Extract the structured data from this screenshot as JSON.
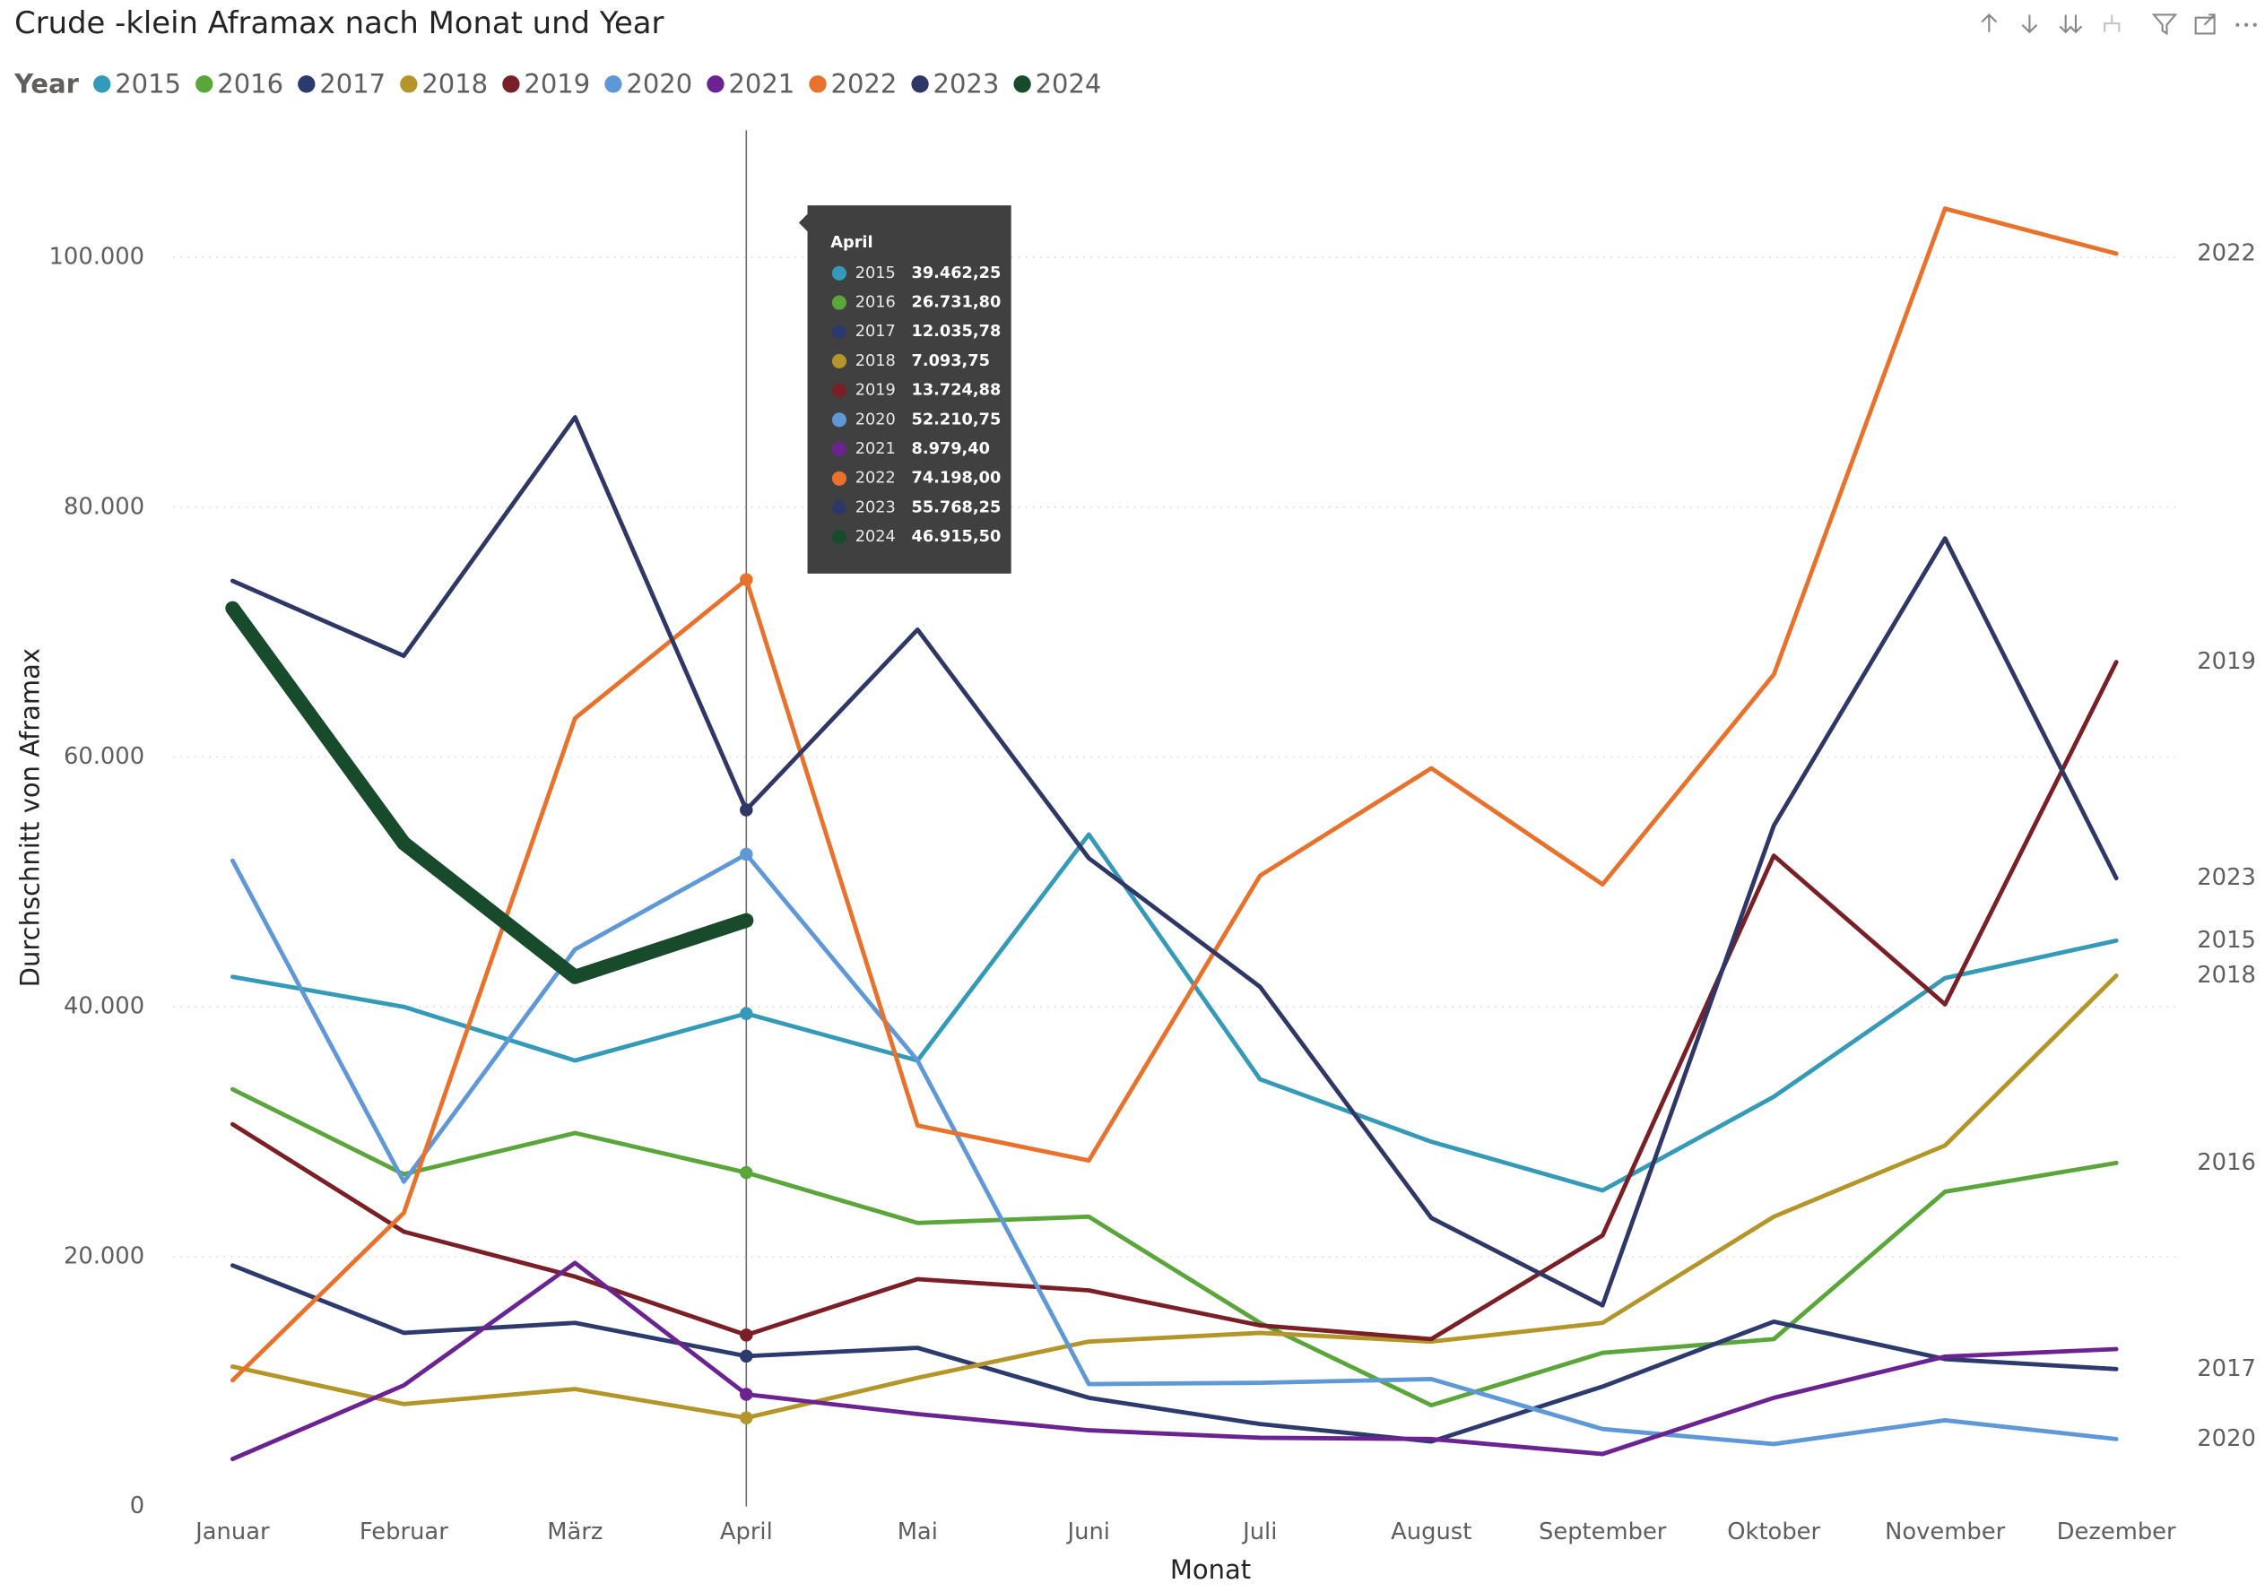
{
  "chart_data": {
    "type": "line",
    "title": "Crude -klein Aframax nach Monat und Year",
    "legend_title": "Year",
    "x_label": "Monat",
    "y_label": "Durchschnitt von Aframax",
    "categories": [
      "Januar",
      "Februar",
      "März",
      "April",
      "Mai",
      "Juni",
      "Juli",
      "August",
      "September",
      "Oktober",
      "November",
      "Dezember"
    ],
    "ylim": [
      0,
      110000
    ],
    "yticks": [
      0,
      {
        "value": 20000,
        "label": "20.000"
      },
      {
        "value": 40000,
        "label": "40.000"
      },
      {
        "value": 60000,
        "label": "60.000"
      },
      {
        "value": 80000,
        "label": "80.000"
      },
      {
        "value": 100000,
        "label": "100.000"
      }
    ],
    "grid": true,
    "series": [
      {
        "name": "2015",
        "color": "#3599b8",
        "values": [
          42400,
          40000,
          35700,
          39462.25,
          35700,
          53800,
          34200,
          29200,
          25300,
          32800,
          42300,
          45300
        ]
      },
      {
        "name": "2016",
        "color": "#5aa63a",
        "values": [
          33400,
          26600,
          29900,
          26731.8,
          22700,
          23200,
          14700,
          8100,
          12300,
          13400,
          25200,
          27500
        ]
      },
      {
        "name": "2017",
        "color": "#2d3a6d",
        "values": [
          19300,
          13900,
          14700,
          12035.78,
          12700,
          8700,
          6600,
          5200,
          9600,
          14800,
          11800,
          11000
        ]
      },
      {
        "name": "2018",
        "color": "#b3952a",
        "values": [
          11200,
          8200,
          9400,
          7093.75,
          10300,
          13200,
          13900,
          13200,
          14700,
          23200,
          28900,
          42500
        ]
      },
      {
        "name": "2019",
        "color": "#7a1f26",
        "values": [
          30600,
          22000,
          18400,
          13724.88,
          18200,
          17300,
          14500,
          13400,
          21700,
          52100,
          40200,
          67600
        ]
      },
      {
        "name": "2020",
        "color": "#5f98d6",
        "values": [
          51700,
          26000,
          44600,
          52210.75,
          35700,
          9800,
          9900,
          10200,
          6200,
          5000,
          6900,
          5400
        ]
      },
      {
        "name": "2021",
        "color": "#6b2391",
        "values": [
          3800,
          9700,
          19500,
          8979.4,
          7400,
          6100,
          5500,
          5400,
          4200,
          8700,
          12000,
          12600
        ]
      },
      {
        "name": "2022",
        "color": "#e8722b",
        "values": [
          10100,
          23500,
          63100,
          74198,
          30500,
          27700,
          50500,
          59100,
          49800,
          66600,
          103900,
          100300
        ]
      },
      {
        "name": "2023",
        "color": "#2f3766",
        "values": [
          74100,
          68100,
          87200,
          55768.25,
          70200,
          51900,
          41600,
          23100,
          16100,
          54500,
          77500,
          50300
        ]
      },
      {
        "name": "2024",
        "color": "#184a2c",
        "values": [
          71900,
          53100,
          42400,
          46915.5,
          null,
          null,
          null,
          null,
          null,
          null,
          null,
          null
        ]
      }
    ],
    "tooltip": {
      "values": [
        "39.462,25",
        "26.731,80",
        "12.035,78",
        "7.093,75",
        "13.724,88",
        "52.210,75",
        "8.979,40",
        "74.198,00",
        "55.768,25",
        "46.915,50"
      ]
    }
  }
}
